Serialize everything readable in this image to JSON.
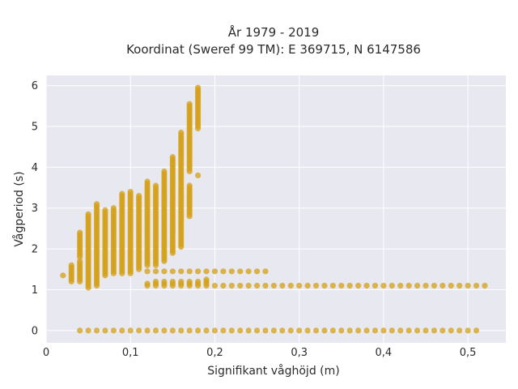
{
  "chart_data": {
    "type": "scatter",
    "title": "År 1979 - 2019",
    "subtitle": "Koordinat (Sweref 99 TM): E 369715, N 6147586",
    "xlabel": "Signifikant våghöjd (m)",
    "ylabel": "Vågperiod (s)",
    "xlim": [
      0,
      0.545
    ],
    "ylim": [
      -0.3,
      6.25
    ],
    "x_ticks": [
      0,
      0.1,
      0.2,
      0.3,
      0.4,
      0.5
    ],
    "x_tick_labels": [
      "0",
      "0,1",
      "0,2",
      "0,3",
      "0,4",
      "0,5"
    ],
    "y_ticks": [
      0,
      1,
      2,
      3,
      4,
      5,
      6
    ],
    "y_tick_labels": [
      "0",
      "1",
      "2",
      "3",
      "4",
      "5",
      "6"
    ],
    "grid": true,
    "marker_color": "#d4a017",
    "background_color": "#e8e8f0",
    "columns": [
      {
        "x": 0.02,
        "ranges": [
          [
            1.35,
            1.35
          ]
        ]
      },
      {
        "x": 0.03,
        "ranges": [
          [
            1.2,
            1.6
          ]
        ]
      },
      {
        "x": 0.04,
        "ranges": [
          [
            0,
            0
          ],
          [
            1.2,
            1.7
          ],
          [
            1.8,
            2.4
          ]
        ]
      },
      {
        "x": 0.05,
        "ranges": [
          [
            0,
            0
          ],
          [
            1.05,
            2.85
          ]
        ]
      },
      {
        "x": 0.06,
        "ranges": [
          [
            0,
            0
          ],
          [
            1.1,
            3.1
          ]
        ]
      },
      {
        "x": 0.07,
        "ranges": [
          [
            0,
            0
          ],
          [
            1.35,
            2.95
          ]
        ]
      },
      {
        "x": 0.08,
        "ranges": [
          [
            0,
            0
          ],
          [
            1.4,
            3.0
          ]
        ]
      },
      {
        "x": 0.09,
        "ranges": [
          [
            0,
            0
          ],
          [
            1.4,
            3.35
          ]
        ]
      },
      {
        "x": 0.1,
        "ranges": [
          [
            0,
            0
          ],
          [
            1.4,
            3.4
          ]
        ]
      },
      {
        "x": 0.11,
        "ranges": [
          [
            0,
            0
          ],
          [
            1.5,
            3.3
          ]
        ]
      },
      {
        "x": 0.12,
        "ranges": [
          [
            0,
            0
          ],
          [
            1.1,
            1.15
          ],
          [
            1.45,
            1.45
          ],
          [
            1.6,
            3.65
          ]
        ]
      },
      {
        "x": 0.13,
        "ranges": [
          [
            0,
            0
          ],
          [
            1.1,
            1.2
          ],
          [
            1.45,
            1.45
          ],
          [
            1.6,
            3.55
          ]
        ]
      },
      {
        "x": 0.14,
        "ranges": [
          [
            0,
            0
          ],
          [
            1.1,
            1.2
          ],
          [
            1.45,
            1.45
          ],
          [
            1.7,
            3.9
          ]
        ]
      },
      {
        "x": 0.15,
        "ranges": [
          [
            0,
            0
          ],
          [
            1.1,
            1.2
          ],
          [
            1.45,
            1.45
          ],
          [
            1.9,
            4.25
          ]
        ]
      },
      {
        "x": 0.16,
        "ranges": [
          [
            0,
            0
          ],
          [
            1.1,
            1.2
          ],
          [
            1.45,
            1.45
          ],
          [
            2.05,
            4.85
          ]
        ]
      },
      {
        "x": 0.17,
        "ranges": [
          [
            0,
            0
          ],
          [
            1.1,
            1.2
          ],
          [
            1.45,
            1.45
          ],
          [
            2.8,
            3.55
          ],
          [
            3.9,
            5.55
          ]
        ]
      },
      {
        "x": 0.18,
        "ranges": [
          [
            0,
            0
          ],
          [
            1.1,
            1.2
          ],
          [
            1.45,
            1.45
          ],
          [
            3.8,
            3.8
          ],
          [
            4.95,
            5.95
          ]
        ]
      },
      {
        "x": 0.19,
        "ranges": [
          [
            0,
            0
          ],
          [
            1.1,
            1.25
          ],
          [
            1.45,
            1.45
          ]
        ]
      },
      {
        "x": 0.2,
        "ranges": [
          [
            0,
            0
          ],
          [
            1.1,
            1.1
          ],
          [
            1.45,
            1.45
          ]
        ]
      },
      {
        "x": 0.21,
        "ranges": [
          [
            0,
            0
          ],
          [
            1.1,
            1.1
          ],
          [
            1.45,
            1.45
          ]
        ]
      },
      {
        "x": 0.22,
        "ranges": [
          [
            0,
            0
          ],
          [
            1.1,
            1.1
          ],
          [
            1.45,
            1.45
          ]
        ]
      },
      {
        "x": 0.23,
        "ranges": [
          [
            0,
            0
          ],
          [
            1.1,
            1.1
          ],
          [
            1.45,
            1.45
          ]
        ]
      },
      {
        "x": 0.24,
        "ranges": [
          [
            0,
            0
          ],
          [
            1.1,
            1.1
          ],
          [
            1.45,
            1.45
          ]
        ]
      },
      {
        "x": 0.25,
        "ranges": [
          [
            0,
            0
          ],
          [
            1.1,
            1.1
          ],
          [
            1.45,
            1.45
          ]
        ]
      },
      {
        "x": 0.26,
        "ranges": [
          [
            0,
            0
          ],
          [
            1.1,
            1.1
          ],
          [
            1.45,
            1.45
          ]
        ]
      },
      {
        "x": 0.27,
        "ranges": [
          [
            0,
            0
          ],
          [
            1.1,
            1.1
          ]
        ]
      },
      {
        "x": 0.28,
        "ranges": [
          [
            0,
            0
          ],
          [
            1.1,
            1.1
          ]
        ]
      },
      {
        "x": 0.29,
        "ranges": [
          [
            0,
            0
          ],
          [
            1.1,
            1.1
          ]
        ]
      },
      {
        "x": 0.3,
        "ranges": [
          [
            0,
            0
          ],
          [
            1.1,
            1.1
          ]
        ]
      },
      {
        "x": 0.31,
        "ranges": [
          [
            0,
            0
          ],
          [
            1.1,
            1.1
          ]
        ]
      },
      {
        "x": 0.32,
        "ranges": [
          [
            0,
            0
          ],
          [
            1.1,
            1.1
          ]
        ]
      },
      {
        "x": 0.33,
        "ranges": [
          [
            0,
            0
          ],
          [
            1.1,
            1.1
          ]
        ]
      },
      {
        "x": 0.34,
        "ranges": [
          [
            0,
            0
          ],
          [
            1.1,
            1.1
          ]
        ]
      },
      {
        "x": 0.35,
        "ranges": [
          [
            0,
            0
          ],
          [
            1.1,
            1.1
          ]
        ]
      },
      {
        "x": 0.36,
        "ranges": [
          [
            0,
            0
          ],
          [
            1.1,
            1.1
          ]
        ]
      },
      {
        "x": 0.37,
        "ranges": [
          [
            0,
            0
          ],
          [
            1.1,
            1.1
          ]
        ]
      },
      {
        "x": 0.38,
        "ranges": [
          [
            0,
            0
          ],
          [
            1.1,
            1.1
          ]
        ]
      },
      {
        "x": 0.39,
        "ranges": [
          [
            0,
            0
          ],
          [
            1.1,
            1.1
          ]
        ]
      },
      {
        "x": 0.4,
        "ranges": [
          [
            0,
            0
          ],
          [
            1.1,
            1.1
          ]
        ]
      },
      {
        "x": 0.41,
        "ranges": [
          [
            0,
            0
          ],
          [
            1.1,
            1.1
          ]
        ]
      },
      {
        "x": 0.42,
        "ranges": [
          [
            0,
            0
          ],
          [
            1.1,
            1.1
          ]
        ]
      },
      {
        "x": 0.43,
        "ranges": [
          [
            0,
            0
          ],
          [
            1.1,
            1.1
          ]
        ]
      },
      {
        "x": 0.44,
        "ranges": [
          [
            0,
            0
          ],
          [
            1.1,
            1.1
          ]
        ]
      },
      {
        "x": 0.45,
        "ranges": [
          [
            0,
            0
          ],
          [
            1.1,
            1.1
          ]
        ]
      },
      {
        "x": 0.46,
        "ranges": [
          [
            0,
            0
          ],
          [
            1.1,
            1.1
          ]
        ]
      },
      {
        "x": 0.47,
        "ranges": [
          [
            0,
            0
          ],
          [
            1.1,
            1.1
          ]
        ]
      },
      {
        "x": 0.48,
        "ranges": [
          [
            0,
            0
          ],
          [
            1.1,
            1.1
          ]
        ]
      },
      {
        "x": 0.49,
        "ranges": [
          [
            0,
            0
          ],
          [
            1.1,
            1.1
          ]
        ]
      },
      {
        "x": 0.5,
        "ranges": [
          [
            0,
            0
          ],
          [
            1.1,
            1.1
          ]
        ]
      },
      {
        "x": 0.51,
        "ranges": [
          [
            0,
            0
          ],
          [
            1.1,
            1.1
          ]
        ]
      },
      {
        "x": 0.52,
        "ranges": [
          [
            1.1,
            1.1
          ]
        ]
      }
    ]
  }
}
